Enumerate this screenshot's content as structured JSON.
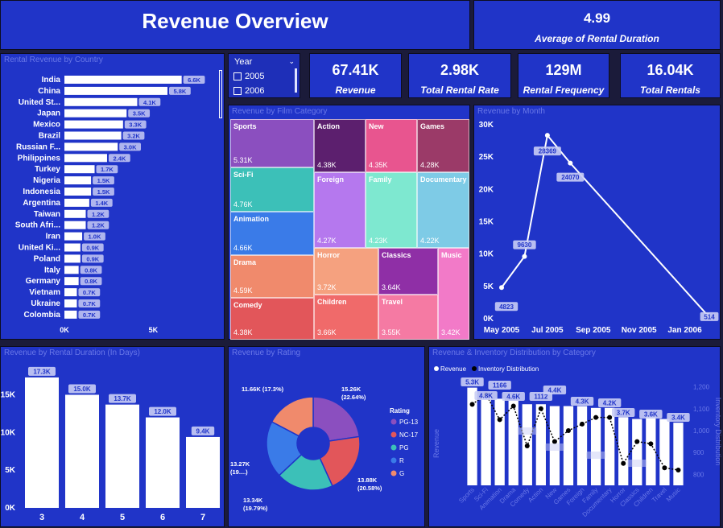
{
  "header": {
    "title": "Revenue Overview"
  },
  "kpis": {
    "avg_duration": {
      "value": "4.99",
      "label": "Average of Rental Duration"
    },
    "revenue": {
      "value": "67.41K",
      "label": "Revenue"
    },
    "rental_rate": {
      "value": "2.98K",
      "label": "Total Rental Rate"
    },
    "rental_freq": {
      "value": "129M",
      "label": "Rental Frequency"
    },
    "total_rentals": {
      "value": "16.04K",
      "label": "Total Rentals"
    }
  },
  "slicer": {
    "title": "Year",
    "options": [
      "2005",
      "2006"
    ]
  },
  "colors": {
    "panel": "#2034c8",
    "bar": "#ffffff",
    "label_bg": "#c9cdf5"
  },
  "chart_data": [
    {
      "id": "country",
      "type": "bar",
      "orientation": "horizontal",
      "title": "Rental Revenue by Country",
      "categories": [
        "India",
        "China",
        "United St...",
        "Japan",
        "Mexico",
        "Brazil",
        "Russian F...",
        "Philippines",
        "Turkey",
        "Nigeria",
        "Indonesia",
        "Argentina",
        "Taiwan",
        "South Afri...",
        "Iran",
        "United Ki...",
        "Poland",
        "Italy",
        "Germany",
        "Vietnam",
        "Ukraine",
        "Colombia"
      ],
      "values": [
        6.6,
        5.8,
        4.1,
        3.5,
        3.3,
        3.2,
        3.0,
        2.4,
        1.7,
        1.5,
        1.5,
        1.4,
        1.2,
        1.2,
        1.0,
        0.9,
        0.9,
        0.8,
        0.8,
        0.7,
        0.7,
        0.7
      ],
      "value_labels": [
        "6.6K",
        "5.8K",
        "4.1K",
        "3.5K",
        "3.3K",
        "3.2K",
        "3.0K",
        "2.4K",
        "1.7K",
        "1.5K",
        "1.5K",
        "1.4K",
        "1.2K",
        "1.2K",
        "1.0K",
        "0.9K",
        "0.9K",
        "0.8K",
        "0.8K",
        "0.7K",
        "0.7K",
        "0.7K"
      ],
      "x_ticks": [
        "0K",
        "5K"
      ],
      "xlim": [
        0,
        8.7
      ]
    },
    {
      "id": "category",
      "type": "treemap",
      "title": "Revenue by Film Category",
      "items": [
        {
          "name": "Sports",
          "value": "5.31K",
          "color": "#8b4fbf"
        },
        {
          "name": "Sci-Fi",
          "value": "4.76K",
          "color": "#3cc0b8"
        },
        {
          "name": "Animation",
          "value": "4.66K",
          "color": "#3a7be8"
        },
        {
          "name": "Drama",
          "value": "4.59K",
          "color": "#f08a6c"
        },
        {
          "name": "Comedy",
          "value": "4.38K",
          "color": "#e2565a"
        },
        {
          "name": "Action",
          "value": "4.38K",
          "color": "#5c1f6e"
        },
        {
          "name": "New",
          "value": "4.35K",
          "color": "#e8558f"
        },
        {
          "name": "Games",
          "value": "4.28K",
          "color": "#9b3a68"
        },
        {
          "name": "Foreign",
          "value": "4.27K",
          "color": "#b578ee"
        },
        {
          "name": "Family",
          "value": "4.23K",
          "color": "#7ee8d0"
        },
        {
          "name": "Documentary",
          "value": "4.22K",
          "color": "#7ecbe6"
        },
        {
          "name": "Horror",
          "value": "3.72K",
          "color": "#f5a17f"
        },
        {
          "name": "Classics",
          "value": "3.64K",
          "color": "#8f2fa6"
        },
        {
          "name": "Music",
          "value": "3.42K",
          "color": "#f27ac8"
        },
        {
          "name": "Children",
          "value": "3.66K",
          "color": "#f06a6a"
        },
        {
          "name": "Travel",
          "value": "3.55K",
          "color": "#f57aa3"
        }
      ]
    },
    {
      "id": "month",
      "type": "line",
      "title": "Revenue by Month",
      "x": [
        "2005-05",
        "2005-06",
        "2005-07",
        "2005-08",
        "2006-02"
      ],
      "values": [
        4823,
        9630,
        28369,
        24070,
        514
      ],
      "y_ticks": [
        "0K",
        "5K",
        "10K",
        "15K",
        "20K",
        "25K",
        "30K"
      ],
      "x_ticks": [
        "May 2005",
        "Jul 2005",
        "Sep 2005",
        "Nov 2005",
        "Jan 2006"
      ],
      "ylim": [
        0,
        30000
      ]
    },
    {
      "id": "duration",
      "type": "bar",
      "title": "Revenue by Rental Duration (In Days)",
      "categories": [
        "3",
        "4",
        "5",
        "6",
        "7"
      ],
      "values": [
        17.3,
        15.0,
        13.7,
        12.0,
        9.4
      ],
      "value_labels": [
        "17.3K",
        "15.0K",
        "13.7K",
        "12.0K",
        "9.4K"
      ],
      "y_ticks": [
        "0K",
        "5K",
        "10K",
        "15K"
      ],
      "ylim": [
        0,
        19
      ]
    },
    {
      "id": "rating",
      "type": "pie",
      "title": "Revenue by Rating",
      "legend_title": "Rating",
      "categories": [
        "PG-13",
        "NC-17",
        "PG",
        "R",
        "G"
      ],
      "values": [
        15.26,
        13.88,
        13.34,
        13.27,
        11.66
      ],
      "labels": [
        "15.26K (22.64%)",
        "13.88K (20.58%)",
        "13.34K (19.79%)",
        "13.27K (19....)",
        "11.66K (17.3%)"
      ],
      "colors": [
        "#8b4fbf",
        "#e2565a",
        "#3cc0b8",
        "#3a7be8",
        "#f08a6c"
      ]
    },
    {
      "id": "inventory",
      "type": "bar",
      "title": "Revenue & Inventory Distribution by Category",
      "categories": [
        "Sports",
        "Sci-Fi",
        "Animation",
        "Drama",
        "Comedy",
        "Action",
        "New",
        "Games",
        "Foreign",
        "Family",
        "Documentary",
        "Horror",
        "Classics",
        "Children",
        "Travel",
        "Music"
      ],
      "series": [
        {
          "name": "Revenue",
          "values": [
            5.3,
            4.8,
            4.7,
            4.6,
            4.4,
            4.4,
            4.3,
            4.3,
            4.3,
            4.2,
            4.2,
            3.7,
            3.6,
            3.7,
            3.6,
            3.4
          ]
        },
        {
          "name": "Inventory Distribution",
          "values": [
            1120,
            1166,
            1050,
            1112,
            930,
            1100,
            950,
            1000,
            1030,
            1060,
            1060,
            850,
            950,
            940,
            830,
            820
          ]
        }
      ],
      "data_labels": [
        "5.3K",
        "4.8K",
        "1166",
        "4.6K",
        "1112",
        "4.4K",
        "4.3K",
        "4.2K",
        "3.7K",
        "3.6K",
        "3.4K"
      ],
      "ylabel": "Revenue",
      "y2label": "Inventory Distribution",
      "y2_ticks": [
        "800",
        "900",
        "1,000",
        "1,100",
        "1,200"
      ],
      "y2lim": [
        750,
        1250
      ],
      "ylim": [
        0,
        6.2
      ]
    }
  ]
}
